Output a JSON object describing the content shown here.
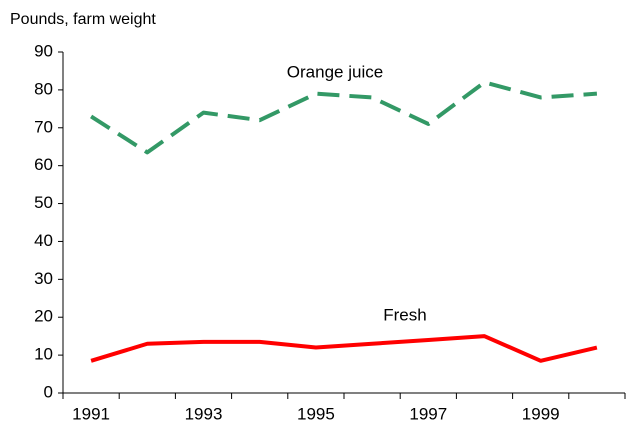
{
  "chart_data": {
    "type": "line",
    "y_label": "Pounds, farm weight",
    "categories": [
      "1991",
      null,
      "1993",
      null,
      "1995",
      null,
      "1997",
      null,
      "1999",
      null
    ],
    "series": [
      {
        "name": "Orange juice",
        "color": "#339966",
        "dashed": true,
        "values": [
          73,
          63.5,
          74,
          72,
          79,
          78,
          71,
          82,
          78,
          79
        ]
      },
      {
        "name": "Fresh",
        "color": "#ff0000",
        "dashed": false,
        "values": [
          8.5,
          13,
          13.5,
          13.5,
          12,
          13,
          14,
          15,
          8.5,
          12
        ]
      }
    ],
    "ylim": [
      0,
      90
    ],
    "yticks": [
      0,
      10,
      20,
      30,
      40,
      50,
      60,
      70,
      80,
      90
    ],
    "grid": false
  }
}
